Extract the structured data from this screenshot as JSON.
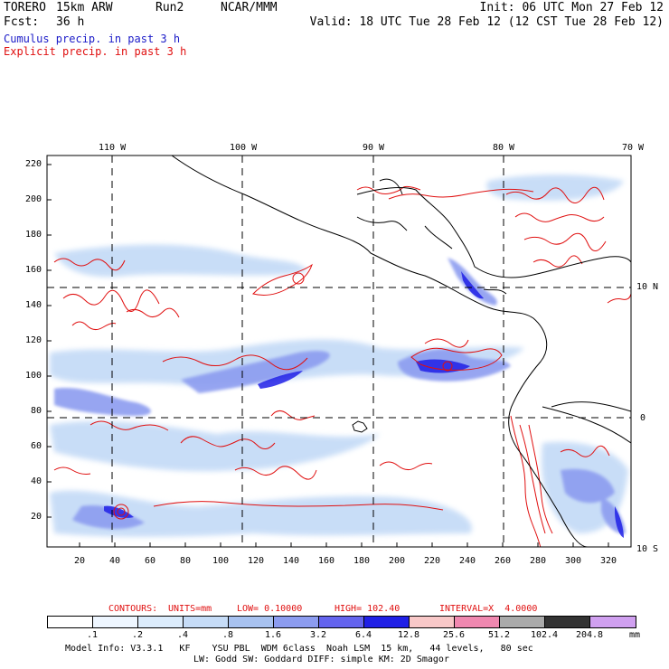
{
  "header": {
    "model": "TORERO",
    "resolution": "15km ARW",
    "run": "Run2",
    "center": "NCAR/MMM",
    "init": "Init: 06 UTC Mon 27 Feb 12",
    "fcst_label": "Fcst:",
    "fcst_value": "36 h",
    "valid": "Valid: 18 UTC Tue 28 Feb 12 (12 CST Tue 28 Feb 12)"
  },
  "fields": {
    "cumulus": "Cumulus precip. in past 3 h",
    "explicit": "Explicit precip. in past 3 h"
  },
  "colors": {
    "cumulus_text": "#1c1cc8",
    "explicit_text": "#e01010",
    "contour": "#e01010",
    "coast": "#000000"
  },
  "map": {
    "lon_labels": [
      "110 W",
      "100 W",
      "90 W",
      "80 W",
      "70 W"
    ],
    "lat_labels": [
      "10 N",
      "0",
      "10 S"
    ],
    "y_ticks": [
      "220",
      "200",
      "180",
      "160",
      "140",
      "120",
      "100",
      "80",
      "60",
      "40",
      "20"
    ],
    "x_ticks": [
      "20",
      "40",
      "60",
      "80",
      "100",
      "120",
      "140",
      "160",
      "180",
      "200",
      "220",
      "240",
      "260",
      "280",
      "300",
      "320"
    ]
  },
  "contours_line": {
    "prefix": "CONTOURS:",
    "units": "UNITS=mm",
    "low": "LOW= 0.10000",
    "high": "HIGH= 102.40",
    "interval": "INTERVAL=X  4.0000"
  },
  "colorbar": {
    "unit": "mm",
    "labels": [
      ".1",
      ".2",
      ".4",
      ".8",
      "1.6",
      "3.2",
      "6.4",
      "12.8",
      "25.6",
      "51.2",
      "102.4",
      "204.8"
    ],
    "colors": [
      "#ffffff",
      "#eef6ff",
      "#dcecfc",
      "#c6dcf7",
      "#a8c2f0",
      "#8c9cf0",
      "#6464ee",
      "#2020e6",
      "#f8c8c8",
      "#f088b0",
      "#aaaaaa",
      "#333333",
      "#d0a0f0"
    ]
  },
  "footer": {
    "line1": "Model Info: V3.3.1   KF    YSU PBL  WDM 6class  Noah LSM  15 km,   44 levels,   80 sec",
    "line2": "LW: Godd SW: Goddard DIFF: simple KM: 2D Smagor"
  }
}
